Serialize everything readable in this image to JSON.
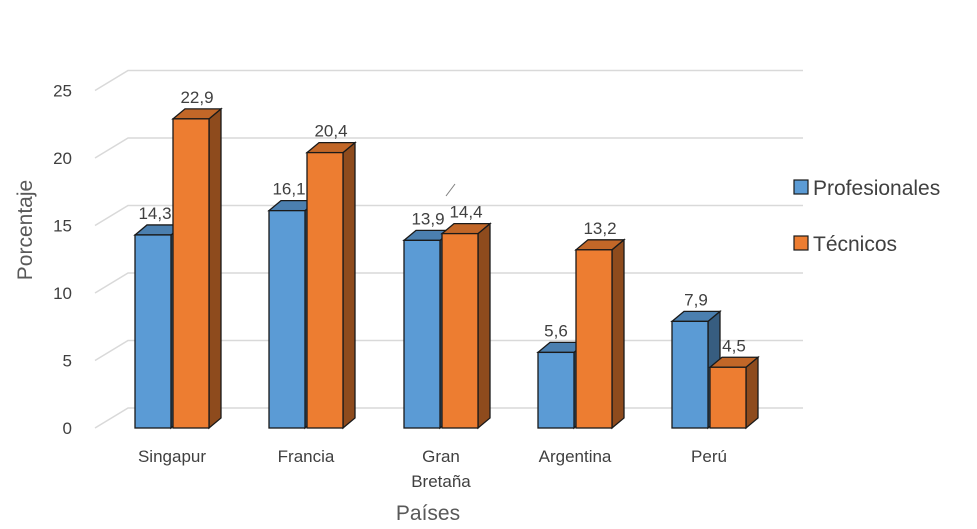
{
  "chart_data": {
    "type": "bar",
    "title": "",
    "xlabel": "Países",
    "ylabel": "Porcentaje",
    "ylim": [
      0,
      25
    ],
    "yticks": [
      0,
      5,
      10,
      15,
      20,
      25
    ],
    "grid": true,
    "legend_position": "right",
    "categories": [
      [
        "Singapur"
      ],
      [
        "Francia"
      ],
      [
        "Gran",
        "Bretaña"
      ],
      [
        "Argentina"
      ],
      [
        "Perú"
      ]
    ],
    "series": [
      {
        "name": "Profesionales",
        "color": "#5B9BD5",
        "values": [
          14.3,
          16.1,
          13.9,
          5.6,
          7.9
        ],
        "labels": [
          "14,3",
          "16,1",
          "13,9",
          "5,6",
          "7,9"
        ]
      },
      {
        "name": "Técnicos",
        "color": "#ED7D31",
        "values": [
          22.9,
          20.4,
          14.4,
          13.2,
          4.5
        ],
        "labels": [
          "22,9",
          "20,4",
          "14,4",
          "13,2",
          "4,5"
        ]
      }
    ]
  }
}
